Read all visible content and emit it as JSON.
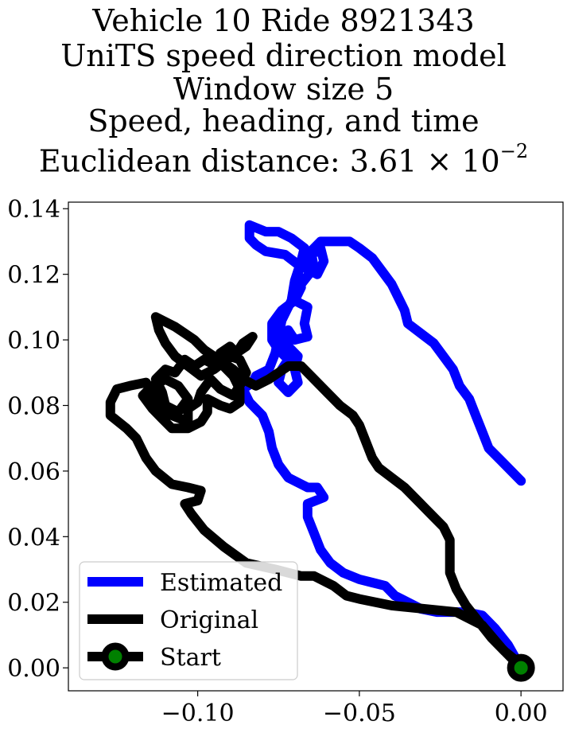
{
  "chart_data": {
    "type": "line",
    "title_lines": [
      "Vehicle 10 Ride 8921343",
      "UniTS speed direction model",
      "Window size 5",
      "Speed, heading, and time"
    ],
    "title_metric_prefix": "Euclidean distance: 3.61",
    "title_metric_times": "×",
    "title_metric_base": "10",
    "title_metric_exp": "−2",
    "xlim": [
      -0.14,
      0.013
    ],
    "ylim": [
      -0.007,
      0.142
    ],
    "xticks": [
      -0.1,
      -0.05,
      0.0
    ],
    "xtick_labels": [
      "−0.10",
      "−0.05",
      "0.00"
    ],
    "yticks": [
      0.0,
      0.02,
      0.04,
      0.06,
      0.08,
      0.1,
      0.12,
      0.14
    ],
    "ytick_labels": [
      "0.00",
      "0.02",
      "0.04",
      "0.06",
      "0.08",
      "0.10",
      "0.12",
      "0.14"
    ],
    "grid": false,
    "legend_position": "lower-left",
    "series": [
      {
        "name": "Estimated",
        "color": "#0000ff",
        "points": [
          [
            0.0,
            0.057
          ],
          [
            -0.006,
            0.063
          ],
          [
            -0.01,
            0.067
          ],
          [
            -0.012,
            0.072
          ],
          [
            -0.014,
            0.077
          ],
          [
            -0.016,
            0.082
          ],
          [
            -0.019,
            0.086
          ],
          [
            -0.021,
            0.091
          ],
          [
            -0.024,
            0.095
          ],
          [
            -0.027,
            0.099
          ],
          [
            -0.031,
            0.102
          ],
          [
            -0.035,
            0.105
          ],
          [
            -0.036,
            0.109
          ],
          [
            -0.038,
            0.113
          ],
          [
            -0.04,
            0.117
          ],
          [
            -0.043,
            0.121
          ],
          [
            -0.046,
            0.125
          ],
          [
            -0.05,
            0.128
          ],
          [
            -0.053,
            0.13
          ],
          [
            -0.058,
            0.13
          ],
          [
            -0.062,
            0.13
          ],
          [
            -0.065,
            0.127
          ],
          [
            -0.064,
            0.122
          ],
          [
            -0.068,
            0.117
          ],
          [
            -0.07,
            0.112
          ],
          [
            -0.066,
            0.11
          ],
          [
            -0.067,
            0.105
          ],
          [
            -0.066,
            0.101
          ],
          [
            -0.07,
            0.1
          ],
          [
            -0.072,
            0.103
          ],
          [
            -0.073,
            0.099
          ],
          [
            -0.069,
            0.095
          ],
          [
            -0.07,
            0.091
          ],
          [
            -0.069,
            0.087
          ],
          [
            -0.072,
            0.084
          ],
          [
            -0.075,
            0.087
          ],
          [
            -0.074,
            0.091
          ],
          [
            -0.072,
            0.094
          ],
          [
            -0.075,
            0.097
          ],
          [
            -0.077,
            0.1
          ],
          [
            -0.077,
            0.105
          ],
          [
            -0.074,
            0.109
          ],
          [
            -0.07,
            0.112
          ],
          [
            -0.068,
            0.116
          ],
          [
            -0.069,
            0.121
          ],
          [
            -0.066,
            0.125
          ],
          [
            -0.062,
            0.128
          ],
          [
            -0.061,
            0.124
          ],
          [
            -0.063,
            0.12
          ],
          [
            -0.069,
            0.123
          ],
          [
            -0.073,
            0.126
          ],
          [
            -0.079,
            0.127
          ],
          [
            -0.082,
            0.129
          ],
          [
            -0.084,
            0.131
          ],
          [
            -0.084,
            0.135
          ],
          [
            -0.079,
            0.133
          ],
          [
            -0.075,
            0.133
          ],
          [
            -0.071,
            0.131
          ],
          [
            -0.067,
            0.128
          ],
          [
            -0.068,
            0.124
          ],
          [
            -0.07,
            0.118
          ],
          [
            -0.071,
            0.112
          ],
          [
            -0.074,
            0.106
          ],
          [
            -0.075,
            0.101
          ],
          [
            -0.076,
            0.096
          ],
          [
            -0.078,
            0.091
          ],
          [
            -0.082,
            0.089
          ],
          [
            -0.083,
            0.087
          ],
          [
            -0.086,
            0.085
          ],
          [
            -0.084,
            0.081
          ],
          [
            -0.08,
            0.077
          ],
          [
            -0.078,
            0.072
          ],
          [
            -0.077,
            0.067
          ],
          [
            -0.075,
            0.062
          ],
          [
            -0.072,
            0.058
          ],
          [
            -0.066,
            0.055
          ],
          [
            -0.063,
            0.055
          ],
          [
            -0.061,
            0.052
          ],
          [
            -0.066,
            0.05
          ],
          [
            -0.066,
            0.046
          ],
          [
            -0.064,
            0.041
          ],
          [
            -0.062,
            0.036
          ],
          [
            -0.059,
            0.032
          ],
          [
            -0.055,
            0.029
          ],
          [
            -0.05,
            0.027
          ],
          [
            -0.046,
            0.026
          ],
          [
            -0.042,
            0.025
          ],
          [
            -0.039,
            0.022
          ],
          [
            -0.035,
            0.02
          ],
          [
            -0.031,
            0.018
          ],
          [
            -0.026,
            0.017
          ],
          [
            -0.021,
            0.017
          ],
          [
            -0.017,
            0.017
          ],
          [
            -0.012,
            0.016
          ],
          [
            -0.008,
            0.012
          ],
          [
            -0.004,
            0.007
          ],
          [
            0.0,
            0.0
          ]
        ]
      },
      {
        "name": "Original",
        "color": "#000000",
        "points": [
          [
            0.0,
            0.0
          ],
          [
            -0.006,
            0.006
          ],
          [
            -0.012,
            0.013
          ],
          [
            -0.02,
            0.017
          ],
          [
            -0.03,
            0.018
          ],
          [
            -0.04,
            0.019
          ],
          [
            -0.05,
            0.021
          ],
          [
            -0.054,
            0.022
          ],
          [
            -0.058,
            0.025
          ],
          [
            -0.064,
            0.028
          ],
          [
            -0.068,
            0.028
          ],
          [
            -0.076,
            0.03
          ],
          [
            -0.085,
            0.032
          ],
          [
            -0.092,
            0.037
          ],
          [
            -0.098,
            0.042
          ],
          [
            -0.102,
            0.047
          ],
          [
            -0.104,
            0.05
          ],
          [
            -0.1,
            0.051
          ],
          [
            -0.099,
            0.054
          ],
          [
            -0.103,
            0.055
          ],
          [
            -0.108,
            0.056
          ],
          [
            -0.113,
            0.06
          ],
          [
            -0.116,
            0.064
          ],
          [
            -0.119,
            0.07
          ],
          [
            -0.122,
            0.073
          ],
          [
            -0.127,
            0.077
          ],
          [
            -0.127,
            0.081
          ],
          [
            -0.125,
            0.085
          ],
          [
            -0.121,
            0.086
          ],
          [
            -0.116,
            0.087
          ],
          [
            -0.113,
            0.082
          ],
          [
            -0.108,
            0.077
          ],
          [
            -0.103,
            0.075
          ],
          [
            -0.103,
            0.079
          ],
          [
            -0.1,
            0.081
          ],
          [
            -0.099,
            0.084
          ],
          [
            -0.096,
            0.088
          ],
          [
            -0.093,
            0.085
          ],
          [
            -0.089,
            0.083
          ],
          [
            -0.087,
            0.086
          ],
          [
            -0.085,
            0.09
          ],
          [
            -0.087,
            0.094
          ],
          [
            -0.09,
            0.095
          ],
          [
            -0.094,
            0.092
          ],
          [
            -0.098,
            0.094
          ],
          [
            -0.101,
            0.092
          ],
          [
            -0.104,
            0.094
          ],
          [
            -0.107,
            0.09
          ],
          [
            -0.11,
            0.091
          ],
          [
            -0.113,
            0.088
          ],
          [
            -0.111,
            0.084
          ],
          [
            -0.11,
            0.08
          ],
          [
            -0.106,
            0.078
          ],
          [
            -0.103,
            0.082
          ],
          [
            -0.106,
            0.086
          ],
          [
            -0.11,
            0.088
          ],
          [
            -0.114,
            0.086
          ],
          [
            -0.117,
            0.083
          ],
          [
            -0.114,
            0.079
          ],
          [
            -0.111,
            0.076
          ],
          [
            -0.108,
            0.073
          ],
          [
            -0.103,
            0.073
          ],
          [
            -0.099,
            0.075
          ],
          [
            -0.097,
            0.078
          ],
          [
            -0.097,
            0.082
          ],
          [
            -0.093,
            0.08
          ],
          [
            -0.09,
            0.079
          ],
          [
            -0.087,
            0.081
          ],
          [
            -0.087,
            0.085
          ],
          [
            -0.089,
            0.089
          ],
          [
            -0.092,
            0.092
          ],
          [
            -0.093,
            0.096
          ],
          [
            -0.09,
            0.098
          ],
          [
            -0.088,
            0.096
          ],
          [
            -0.086,
            0.099
          ],
          [
            -0.083,
            0.101
          ],
          [
            -0.085,
            0.098
          ],
          [
            -0.088,
            0.096
          ],
          [
            -0.091,
            0.094
          ],
          [
            -0.095,
            0.091
          ],
          [
            -0.099,
            0.089
          ],
          [
            -0.103,
            0.092
          ],
          [
            -0.107,
            0.095
          ],
          [
            -0.11,
            0.099
          ],
          [
            -0.112,
            0.103
          ],
          [
            -0.113,
            0.107
          ],
          [
            -0.111,
            0.106
          ],
          [
            -0.107,
            0.104
          ],
          [
            -0.104,
            0.102
          ],
          [
            -0.101,
            0.1
          ],
          [
            -0.098,
            0.097
          ],
          [
            -0.095,
            0.095
          ],
          [
            -0.092,
            0.093
          ],
          [
            -0.089,
            0.091
          ],
          [
            -0.086,
            0.088
          ],
          [
            -0.082,
            0.086
          ],
          [
            -0.078,
            0.088
          ],
          [
            -0.075,
            0.09
          ],
          [
            -0.072,
            0.092
          ],
          [
            -0.068,
            0.092
          ],
          [
            -0.064,
            0.088
          ],
          [
            -0.06,
            0.084
          ],
          [
            -0.056,
            0.08
          ],
          [
            -0.052,
            0.077
          ],
          [
            -0.05,
            0.074
          ],
          [
            -0.048,
            0.069
          ],
          [
            -0.046,
            0.064
          ],
          [
            -0.044,
            0.061
          ],
          [
            -0.04,
            0.058
          ],
          [
            -0.036,
            0.055
          ],
          [
            -0.032,
            0.051
          ],
          [
            -0.028,
            0.047
          ],
          [
            -0.024,
            0.043
          ],
          [
            -0.022,
            0.039
          ],
          [
            -0.022,
            0.034
          ],
          [
            -0.022,
            0.029
          ],
          [
            -0.02,
            0.024
          ],
          [
            -0.017,
            0.019
          ],
          [
            -0.013,
            0.014
          ],
          [
            -0.009,
            0.009
          ],
          [
            -0.005,
            0.005
          ],
          [
            0.0,
            0.001
          ]
        ]
      }
    ],
    "start_point": {
      "name": "Start",
      "x": 0.0,
      "y": 0.0,
      "edge_color": "#000000",
      "face_color": "#008000"
    },
    "legend": [
      {
        "label": "Estimated",
        "color": "#0000ff",
        "marker": false
      },
      {
        "label": "Original",
        "color": "#000000",
        "marker": false
      },
      {
        "label": "Start",
        "color": "#000000",
        "marker": true,
        "marker_face": "#008000"
      }
    ]
  }
}
